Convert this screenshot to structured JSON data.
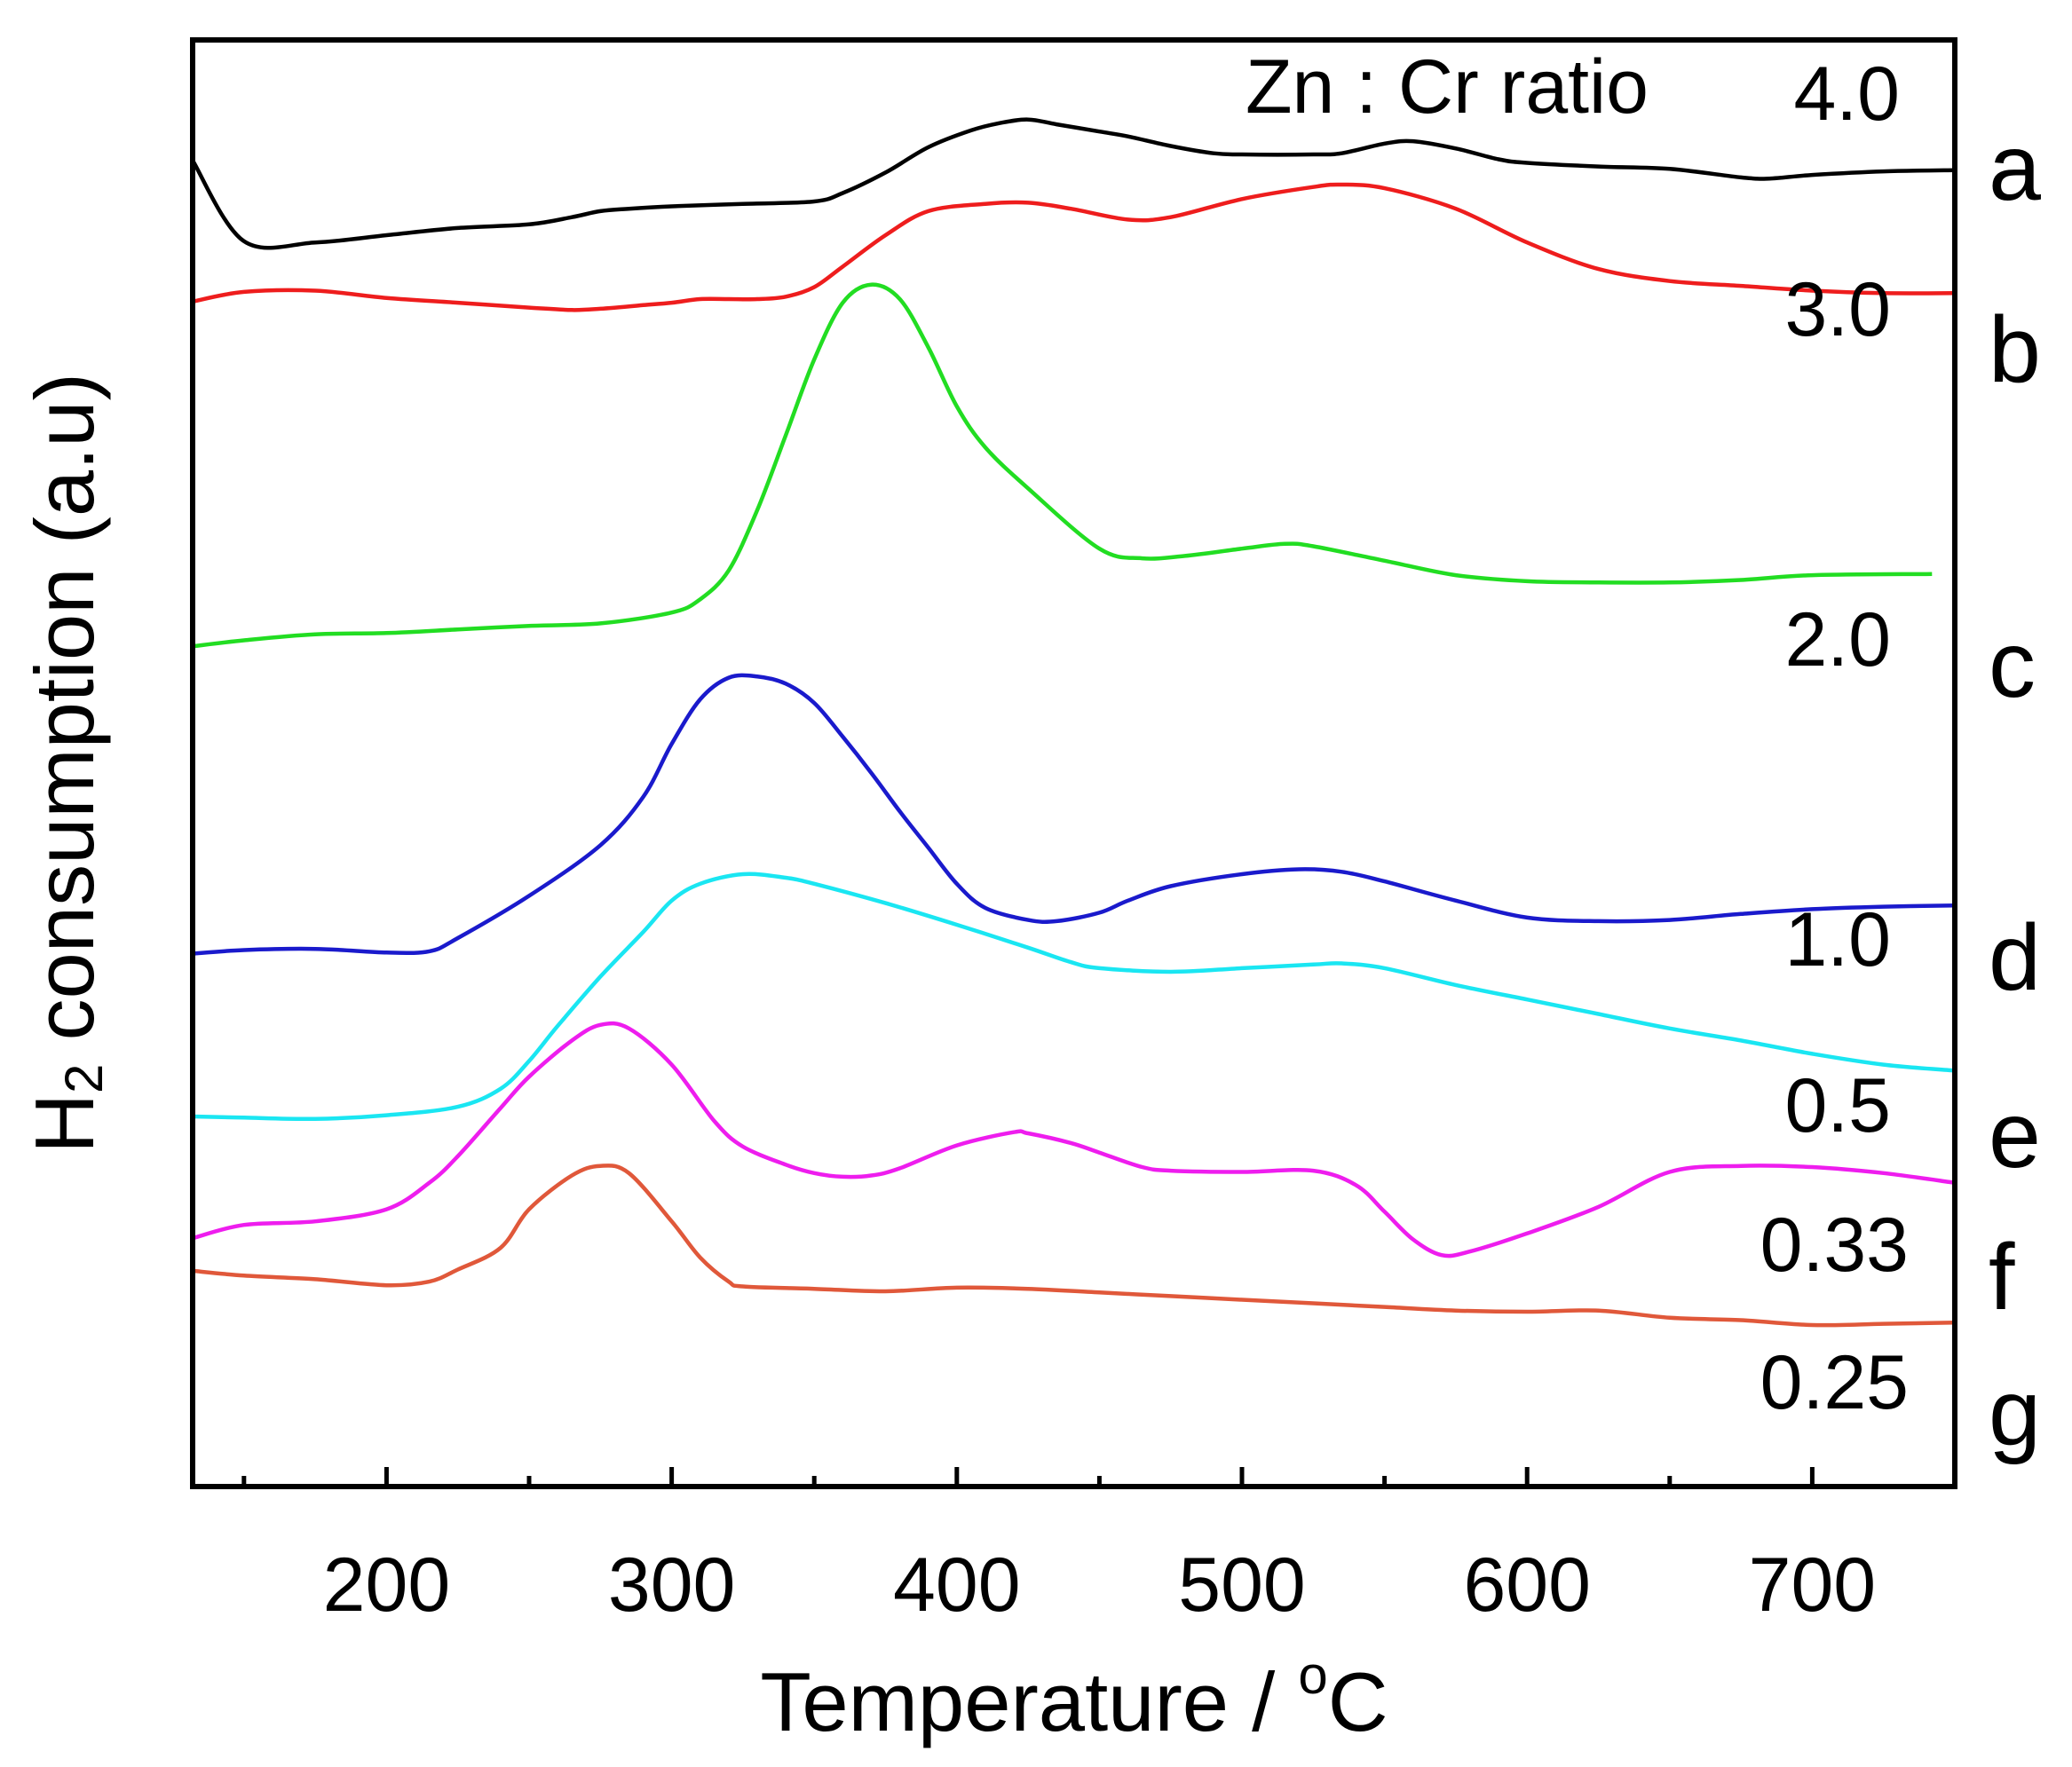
{
  "chart_data": {
    "type": "line",
    "title": "",
    "xlabel": "Temperature / °C",
    "xlabel_prefix": "Temperature / ",
    "xlabel_degree": "o",
    "xlabel_unit": "C",
    "ylabel": "H2 consumption (a.u)",
    "ylabel_main": "H",
    "ylabel_sub": "2",
    "ylabel_rest": " consumption (a.u)",
    "xlim": [
      132,
      750
    ],
    "ylim": [
      0,
      12
    ],
    "xticks": [
      200,
      300,
      400,
      500,
      600,
      700
    ],
    "xtick_labels": [
      "200",
      "300",
      "400",
      "500",
      "600",
      "700"
    ],
    "minor_xticks": [
      150,
      250,
      350,
      450,
      550,
      650,
      750
    ],
    "legend_title": "Zn : Cr ratio",
    "series": [
      {
        "name": "a",
        "ratio": "4.0",
        "color": "#000000",
        "x": [
          132,
          150,
          175,
          200,
          225,
          250,
          265,
          275,
          285,
          300,
          325,
          350,
          360,
          375,
          390,
          405,
          415,
          425,
          435,
          450,
          460,
          475,
          490,
          500,
          525,
          535,
          550,
          560,
          575,
          590,
          600,
          625,
          650,
          675,
          685,
          700,
          725,
          750
        ],
        "y": [
          11.0,
          10.33,
          10.32,
          10.38,
          10.44,
          10.47,
          10.53,
          10.58,
          10.6,
          10.62,
          10.64,
          10.66,
          10.73,
          10.9,
          11.11,
          11.25,
          11.31,
          11.34,
          11.3,
          11.24,
          11.2,
          11.12,
          11.06,
          11.05,
          11.05,
          11.06,
          11.14,
          11.16,
          11.1,
          11.01,
          10.98,
          10.95,
          10.93,
          10.86,
          10.85,
          10.88,
          10.91,
          10.92
        ]
      },
      {
        "name": "b",
        "ratio": "3.0",
        "color": "#ee1d1d",
        "x": [
          132,
          150,
          175,
          200,
          225,
          250,
          265,
          275,
          290,
          300,
          310,
          320,
          330,
          340,
          350,
          360,
          375,
          390,
          410,
          425,
          440,
          460,
          475,
          500,
          525,
          535,
          550,
          575,
          600,
          625,
          650,
          675,
          700,
          725,
          750
        ],
        "y": [
          9.83,
          9.91,
          9.92,
          9.86,
          9.82,
          9.78,
          9.76,
          9.77,
          9.8,
          9.82,
          9.85,
          9.85,
          9.85,
          9.87,
          9.95,
          10.12,
          10.38,
          10.58,
          10.64,
          10.65,
          10.6,
          10.51,
          10.53,
          10.68,
          10.78,
          10.8,
          10.77,
          10.6,
          10.32,
          10.1,
          10.0,
          9.96,
          9.92,
          9.9,
          9.9
        ]
      },
      {
        "name": "c",
        "ratio": "2.0",
        "color": "#22dd22",
        "x": [
          132,
          150,
          175,
          200,
          225,
          250,
          275,
          300,
          310,
          320,
          330,
          340,
          350,
          360,
          370,
          380,
          390,
          400,
          410,
          425,
          450,
          465,
          480,
          500,
          515,
          525,
          550,
          575,
          600,
          625,
          650,
          675,
          700,
          742
        ],
        "y": [
          6.97,
          7.02,
          7.07,
          7.08,
          7.11,
          7.14,
          7.16,
          7.25,
          7.36,
          7.6,
          8.1,
          8.72,
          9.35,
          9.82,
          9.97,
          9.85,
          9.45,
          8.96,
          8.62,
          8.28,
          7.78,
          7.7,
          7.72,
          7.78,
          7.82,
          7.8,
          7.68,
          7.56,
          7.51,
          7.5,
          7.5,
          7.52,
          7.56,
          7.57
        ]
      },
      {
        "name": "d",
        "ratio": "1.0",
        "color": "#1a1acc",
        "x": [
          132,
          150,
          175,
          200,
          215,
          225,
          250,
          275,
          290,
          300,
          310,
          320,
          330,
          340,
          350,
          360,
          370,
          380,
          390,
          400,
          410,
          425,
          435,
          450,
          460,
          475,
          500,
          520,
          535,
          550,
          575,
          600,
          625,
          650,
          675,
          700,
          725,
          750
        ],
        "y": [
          4.42,
          4.45,
          4.46,
          4.43,
          4.44,
          4.55,
          4.9,
          5.32,
          5.72,
          6.16,
          6.53,
          6.71,
          6.72,
          6.66,
          6.5,
          6.22,
          5.92,
          5.6,
          5.3,
          5.0,
          4.8,
          4.7,
          4.69,
          4.76,
          4.86,
          4.98,
          5.08,
          5.12,
          5.1,
          5.02,
          4.86,
          4.72,
          4.69,
          4.7,
          4.75,
          4.79,
          4.81,
          4.82
        ]
      },
      {
        "name": "e",
        "ratio": "0.5",
        "color": "#1ae6f2",
        "x": [
          132,
          150,
          175,
          200,
          225,
          240,
          250,
          260,
          275,
          290,
          300,
          310,
          325,
          340,
          350,
          375,
          400,
          425,
          440,
          450,
          475,
          500,
          525,
          535,
          550,
          575,
          600,
          625,
          650,
          675,
          700,
          725,
          750
        ],
        "y": [
          3.07,
          3.06,
          3.05,
          3.08,
          3.15,
          3.3,
          3.53,
          3.82,
          4.23,
          4.6,
          4.86,
          5.0,
          5.08,
          5.05,
          5.0,
          4.84,
          4.66,
          4.47,
          4.35,
          4.3,
          4.27,
          4.3,
          4.33,
          4.34,
          4.3,
          4.16,
          4.04,
          3.92,
          3.8,
          3.7,
          3.59,
          3.5,
          3.45
        ]
      },
      {
        "name": "f",
        "ratio": "0.33",
        "color": "#ee1dee",
        "x": [
          132,
          150,
          175,
          200,
          215,
          225,
          240,
          250,
          265,
          275,
          285,
          300,
          315,
          325,
          340,
          350,
          360,
          370,
          380,
          400,
          420,
          425,
          440,
          450,
          465,
          475,
          500,
          525,
          540,
          550,
          560,
          570,
          580,
          600,
          625,
          650,
          675,
          700,
          725,
          750
        ],
        "y": [
          2.06,
          2.17,
          2.2,
          2.3,
          2.52,
          2.74,
          3.14,
          3.4,
          3.7,
          3.83,
          3.8,
          3.5,
          3.03,
          2.82,
          2.67,
          2.6,
          2.57,
          2.58,
          2.64,
          2.83,
          2.94,
          2.93,
          2.85,
          2.77,
          2.65,
          2.62,
          2.61,
          2.62,
          2.5,
          2.28,
          2.05,
          1.92,
          1.95,
          2.1,
          2.32,
          2.61,
          2.66,
          2.65,
          2.6,
          2.52
        ]
      },
      {
        "name": "g",
        "ratio": "0.25",
        "color": "#e0583a",
        "x": [
          132,
          150,
          175,
          200,
          215,
          225,
          240,
          250,
          265,
          275,
          285,
          300,
          310,
          320,
          325,
          350,
          375,
          400,
          425,
          450,
          475,
          500,
          525,
          550,
          575,
          600,
          625,
          650,
          675,
          700,
          725,
          750
        ],
        "y": [
          1.79,
          1.75,
          1.72,
          1.67,
          1.7,
          1.8,
          1.98,
          2.3,
          2.58,
          2.66,
          2.6,
          2.2,
          1.9,
          1.7,
          1.66,
          1.64,
          1.62,
          1.65,
          1.64,
          1.61,
          1.58,
          1.55,
          1.52,
          1.49,
          1.46,
          1.45,
          1.46,
          1.4,
          1.38,
          1.34,
          1.35,
          1.36
        ]
      }
    ],
    "curve_labels": [
      {
        "letter": "a",
        "ratio": "4.0"
      },
      {
        "letter": "b",
        "ratio": "3.0"
      },
      {
        "letter": "c",
        "ratio": "2.0"
      },
      {
        "letter": "d",
        "ratio": "1.0"
      },
      {
        "letter": "e",
        "ratio": "0.5"
      },
      {
        "letter": "f",
        "ratio": "0.33"
      },
      {
        "letter": "g",
        "ratio": "0.25"
      }
    ]
  }
}
